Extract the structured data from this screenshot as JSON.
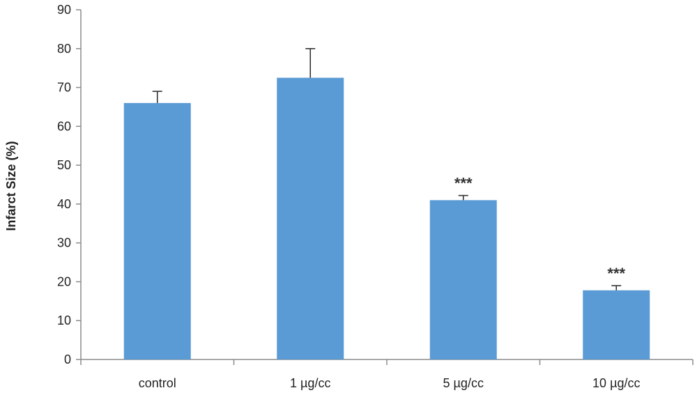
{
  "chart_data": {
    "type": "bar",
    "title": "",
    "xlabel": "",
    "ylabel": "Infarct Size (%)",
    "ylim": [
      0,
      90
    ],
    "yticks": [
      0,
      10,
      20,
      30,
      40,
      50,
      60,
      70,
      80,
      90
    ],
    "grid": false,
    "categories": [
      "control",
      "1 µg/cc",
      "5 µg/cc",
      "10 µg/cc"
    ],
    "values": [
      66,
      72.5,
      41,
      17.8
    ],
    "errors": [
      3,
      7.5,
      1.2,
      1.2
    ],
    "annotations": [
      "",
      "",
      "***",
      "***"
    ],
    "bar_color": "#5b9bd5",
    "axis_color": "#8c8c8c"
  }
}
